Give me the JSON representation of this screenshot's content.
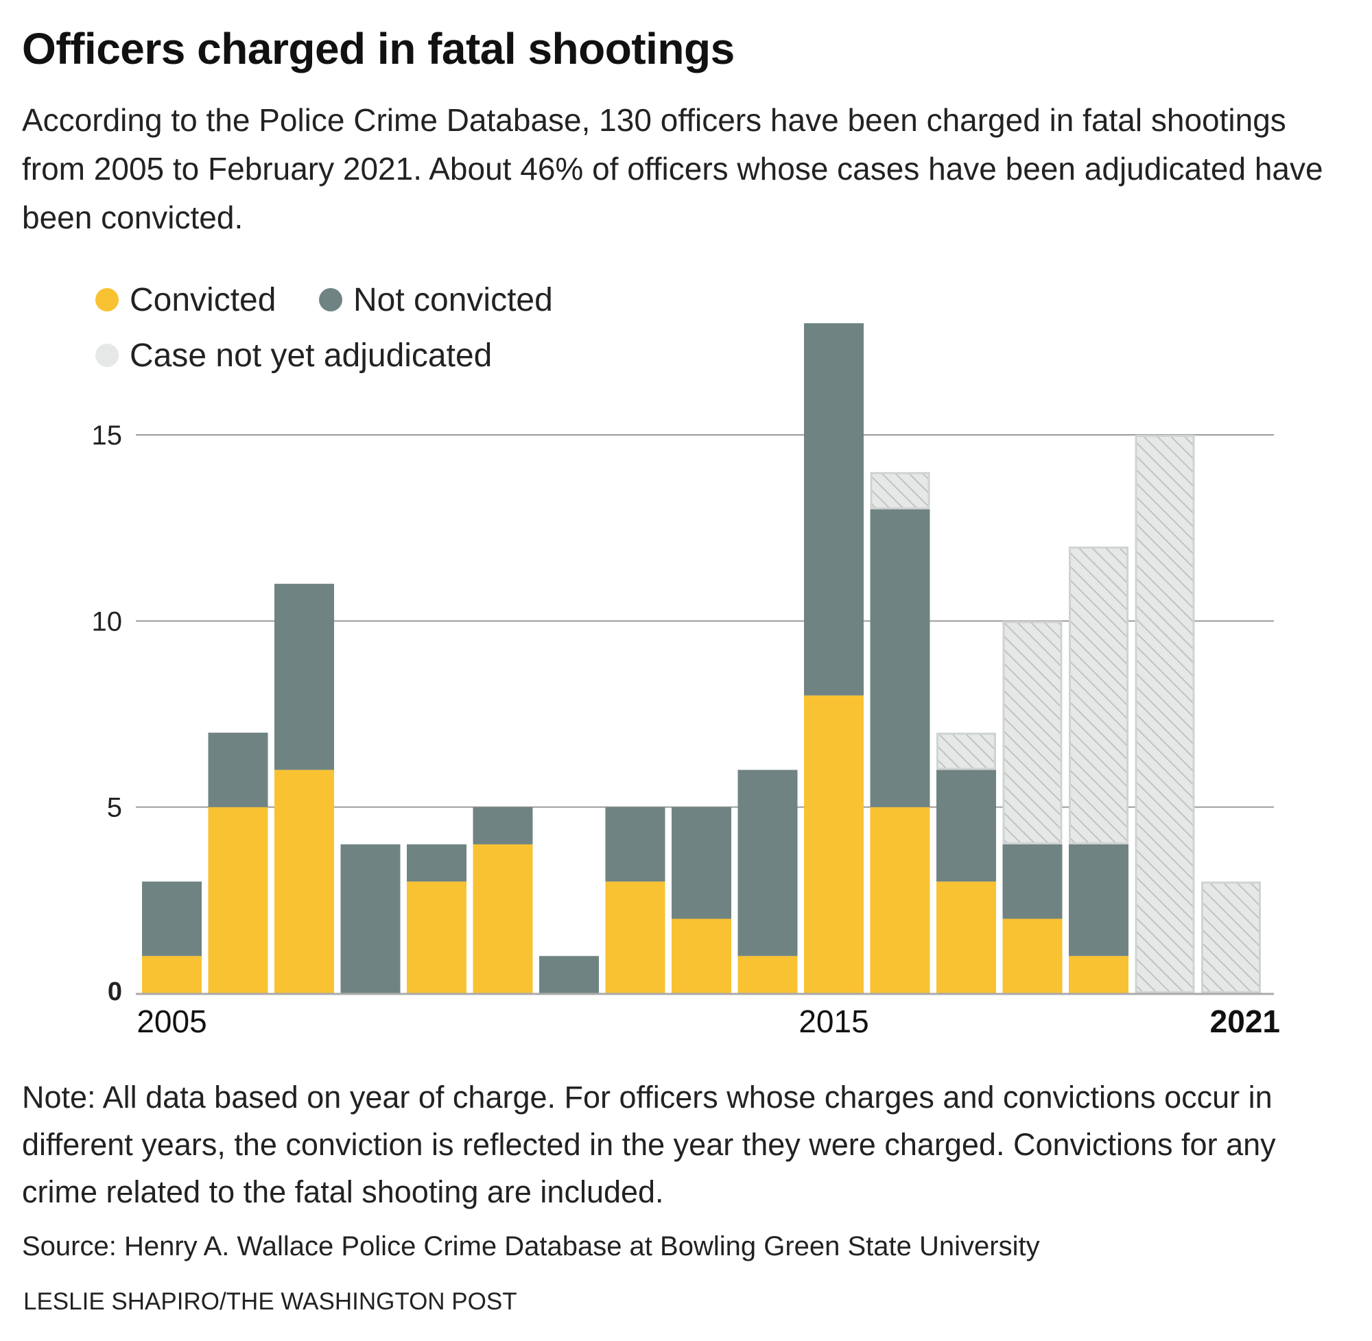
{
  "title": "Officers charged in fatal shootings",
  "subtitle": "According to the Police Crime Database, 130 officers have been charged in fatal shootings from 2005 to February 2021. About 46% of officers whose cases have been adjudicated have been convicted.",
  "note": "Note: All data based on year of charge. For officers whose charges and convictions occur in different years, the conviction is reflected in the year they were charged. Convictions for any crime related to the fatal shooting are included.",
  "source": "Source: Henry A. Wallace Police Crime Database at Bowling Green State University",
  "credit": "LESLIE SHAPIRO/THE WASHINGTON POST",
  "chart_data": {
    "type": "bar",
    "stacked": true,
    "categories": [
      "2005",
      "2006",
      "2007",
      "2008",
      "2009",
      "2010",
      "2011",
      "2012",
      "2013",
      "2014",
      "2015",
      "2016",
      "2017",
      "2018",
      "2019",
      "2020",
      "2021"
    ],
    "x_tick_labels": [
      "2005",
      "2015",
      "2021"
    ],
    "series": [
      {
        "name": "Convicted",
        "color": "#f9c232",
        "values": [
          1,
          5,
          6,
          0,
          3,
          4,
          0,
          3,
          2,
          1,
          8,
          5,
          3,
          2,
          1,
          0,
          0
        ]
      },
      {
        "name": "Not convicted",
        "color": "#6f8482",
        "values": [
          2,
          2,
          5,
          4,
          1,
          1,
          1,
          2,
          3,
          5,
          10,
          8,
          3,
          2,
          3,
          0,
          0
        ]
      },
      {
        "name": "Case not yet adjudicated",
        "color": "#e4e6e5",
        "pattern": "hatched",
        "values": [
          0,
          0,
          0,
          0,
          0,
          0,
          0,
          0,
          0,
          0,
          0,
          1,
          1,
          6,
          8,
          15,
          3
        ]
      }
    ],
    "ylim": [
      0,
      18
    ],
    "y_ticks": [
      "0",
      "5",
      "10",
      "15"
    ],
    "grid": true,
    "legend_position": "top-left"
  }
}
